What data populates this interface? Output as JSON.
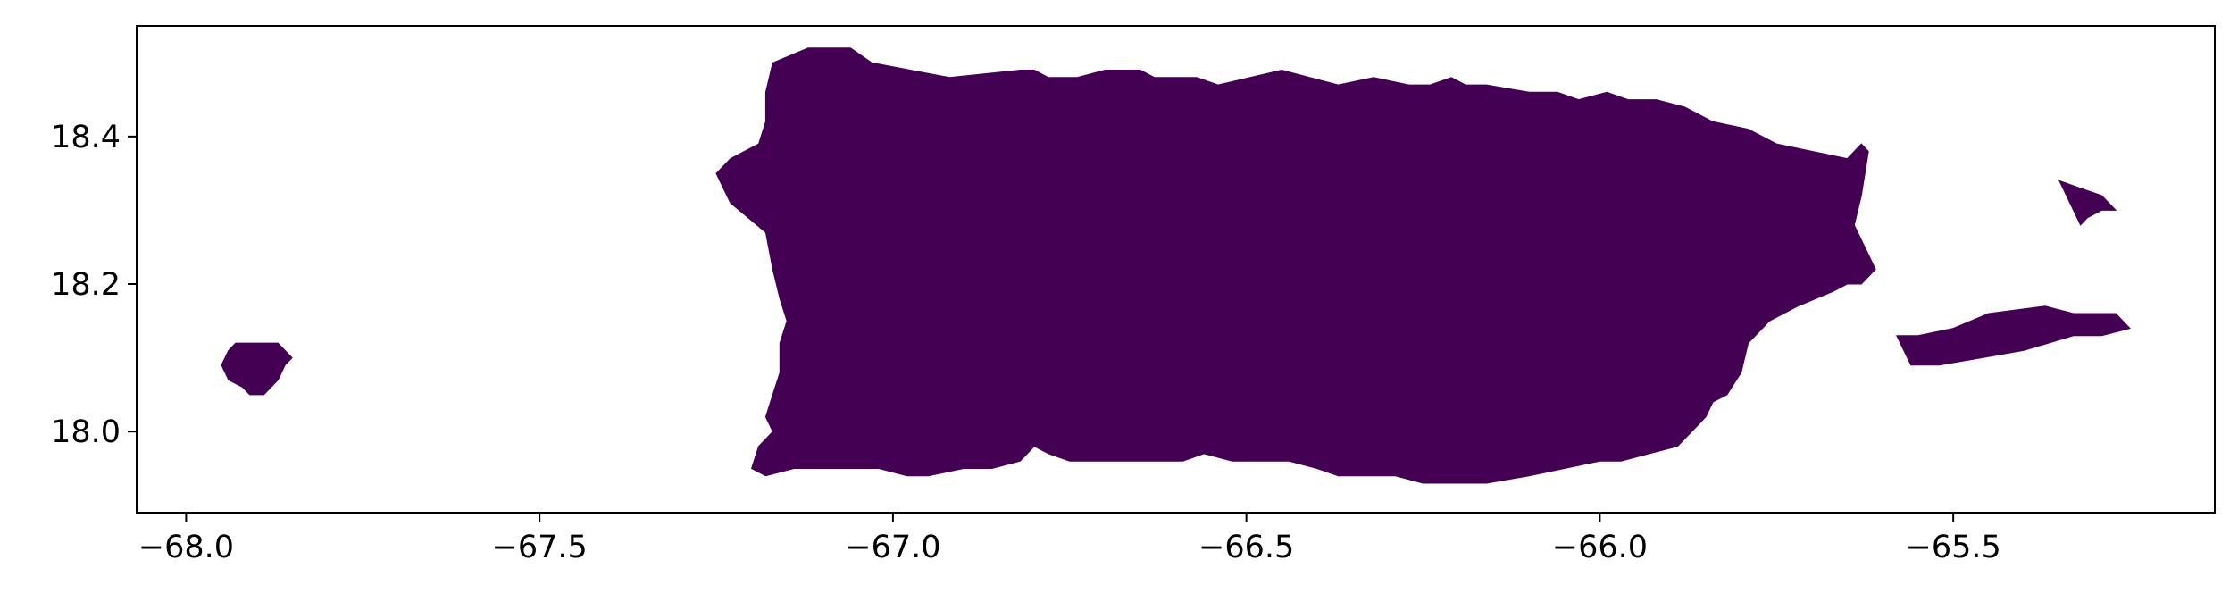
{
  "chart_data": {
    "type": "map",
    "region_color": "#440154",
    "xlim": [
      -68.07,
      -65.13
    ],
    "ylim": [
      17.89,
      18.55
    ],
    "x_ticks": [
      {
        "value": -68.0,
        "label": "−68.0"
      },
      {
        "value": -67.5,
        "label": "−67.5"
      },
      {
        "value": -67.0,
        "label": "−67.0"
      },
      {
        "value": -66.5,
        "label": "−66.5"
      },
      {
        "value": -66.0,
        "label": "−66.0"
      },
      {
        "value": -65.5,
        "label": "−65.5"
      }
    ],
    "y_ticks": [
      {
        "value": 18.0,
        "label": "18.0"
      },
      {
        "value": 18.2,
        "label": "18.2"
      },
      {
        "value": 18.4,
        "label": "18.4"
      }
    ],
    "shapes": [
      {
        "name": "mona-island",
        "coords": [
          [
            -67.94,
            18.11
          ],
          [
            -67.93,
            18.12
          ],
          [
            -67.87,
            18.12
          ],
          [
            -67.86,
            18.11
          ],
          [
            -67.85,
            18.1
          ],
          [
            -67.86,
            18.09
          ],
          [
            -67.87,
            18.07
          ],
          [
            -67.88,
            18.06
          ],
          [
            -67.89,
            18.05
          ],
          [
            -67.91,
            18.05
          ],
          [
            -67.92,
            18.06
          ],
          [
            -67.94,
            18.07
          ],
          [
            -67.95,
            18.09
          ]
        ]
      },
      {
        "name": "puerto-rico-main-island",
        "coords": [
          [
            -67.17,
            18.5
          ],
          [
            -67.12,
            18.52
          ],
          [
            -67.06,
            18.52
          ],
          [
            -67.03,
            18.5
          ],
          [
            -66.92,
            18.48
          ],
          [
            -66.82,
            18.49
          ],
          [
            -66.8,
            18.49
          ],
          [
            -66.78,
            18.48
          ],
          [
            -66.74,
            18.48
          ],
          [
            -66.7,
            18.49
          ],
          [
            -66.65,
            18.49
          ],
          [
            -66.63,
            18.48
          ],
          [
            -66.61,
            18.48
          ],
          [
            -66.57,
            18.48
          ],
          [
            -66.54,
            18.47
          ],
          [
            -66.45,
            18.49
          ],
          [
            -66.37,
            18.47
          ],
          [
            -66.32,
            18.48
          ],
          [
            -66.27,
            18.47
          ],
          [
            -66.24,
            18.47
          ],
          [
            -66.21,
            18.48
          ],
          [
            -66.19,
            18.47
          ],
          [
            -66.16,
            18.47
          ],
          [
            -66.1,
            18.46
          ],
          [
            -66.06,
            18.46
          ],
          [
            -66.03,
            18.45
          ],
          [
            -65.99,
            18.46
          ],
          [
            -65.96,
            18.45
          ],
          [
            -65.92,
            18.45
          ],
          [
            -65.88,
            18.44
          ],
          [
            -65.84,
            18.42
          ],
          [
            -65.79,
            18.41
          ],
          [
            -65.75,
            18.39
          ],
          [
            -65.7,
            18.38
          ],
          [
            -65.65,
            18.37
          ],
          [
            -65.63,
            18.39
          ],
          [
            -65.62,
            18.38
          ],
          [
            -65.63,
            18.32
          ],
          [
            -65.64,
            18.28
          ],
          [
            -65.62,
            18.24
          ],
          [
            -65.61,
            18.22
          ],
          [
            -65.63,
            18.2
          ],
          [
            -65.65,
            18.2
          ],
          [
            -65.67,
            18.19
          ],
          [
            -65.72,
            18.17
          ],
          [
            -65.76,
            18.15
          ],
          [
            -65.79,
            18.12
          ],
          [
            -65.8,
            18.08
          ],
          [
            -65.82,
            18.05
          ],
          [
            -65.84,
            18.04
          ],
          [
            -65.85,
            18.02
          ],
          [
            -65.89,
            17.98
          ],
          [
            -65.93,
            17.97
          ],
          [
            -65.97,
            17.96
          ],
          [
            -66.0,
            17.96
          ],
          [
            -66.05,
            17.95
          ],
          [
            -66.1,
            17.94
          ],
          [
            -66.16,
            17.93
          ],
          [
            -66.21,
            17.93
          ],
          [
            -66.25,
            17.93
          ],
          [
            -66.29,
            17.94
          ],
          [
            -66.33,
            17.94
          ],
          [
            -66.37,
            17.94
          ],
          [
            -66.4,
            17.95
          ],
          [
            -66.44,
            17.96
          ],
          [
            -66.47,
            17.96
          ],
          [
            -66.5,
            17.96
          ],
          [
            -66.52,
            17.96
          ],
          [
            -66.56,
            17.97
          ],
          [
            -66.59,
            17.96
          ],
          [
            -66.63,
            17.96
          ],
          [
            -66.68,
            17.96
          ],
          [
            -66.72,
            17.96
          ],
          [
            -66.75,
            17.96
          ],
          [
            -66.78,
            17.97
          ],
          [
            -66.8,
            17.98
          ],
          [
            -66.82,
            17.96
          ],
          [
            -66.86,
            17.95
          ],
          [
            -66.9,
            17.95
          ],
          [
            -66.95,
            17.94
          ],
          [
            -66.98,
            17.94
          ],
          [
            -67.02,
            17.95
          ],
          [
            -67.06,
            17.95
          ],
          [
            -67.1,
            17.95
          ],
          [
            -67.14,
            17.95
          ],
          [
            -67.18,
            17.94
          ],
          [
            -67.2,
            17.95
          ],
          [
            -67.19,
            17.98
          ],
          [
            -67.17,
            18.0
          ],
          [
            -67.18,
            18.02
          ],
          [
            -67.17,
            18.05
          ],
          [
            -67.16,
            18.08
          ],
          [
            -67.16,
            18.12
          ],
          [
            -67.15,
            18.15
          ],
          [
            -67.16,
            18.18
          ],
          [
            -67.17,
            18.22
          ],
          [
            -67.18,
            18.27
          ],
          [
            -67.23,
            18.31
          ],
          [
            -67.25,
            18.35
          ],
          [
            -67.23,
            18.37
          ],
          [
            -67.19,
            18.39
          ],
          [
            -67.18,
            18.42
          ],
          [
            -67.18,
            18.46
          ]
        ]
      },
      {
        "name": "vieques-island",
        "coords": [
          [
            -65.58,
            18.13
          ],
          [
            -65.55,
            18.13
          ],
          [
            -65.5,
            18.14
          ],
          [
            -65.45,
            18.16
          ],
          [
            -65.37,
            18.17
          ],
          [
            -65.33,
            18.16
          ],
          [
            -65.27,
            18.16
          ],
          [
            -65.25,
            18.14
          ],
          [
            -65.29,
            18.13
          ],
          [
            -65.33,
            18.13
          ],
          [
            -65.4,
            18.11
          ],
          [
            -65.46,
            18.1
          ],
          [
            -65.52,
            18.09
          ],
          [
            -65.56,
            18.09
          ]
        ]
      },
      {
        "name": "culebra-island",
        "coords": [
          [
            -65.35,
            18.34
          ],
          [
            -65.32,
            18.33
          ],
          [
            -65.29,
            18.32
          ],
          [
            -65.27,
            18.3
          ],
          [
            -65.29,
            18.3
          ],
          [
            -65.31,
            18.29
          ],
          [
            -65.32,
            18.28
          ],
          [
            -65.33,
            18.3
          ]
        ]
      }
    ]
  }
}
